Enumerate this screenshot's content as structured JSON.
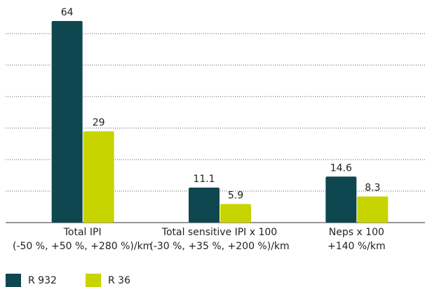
{
  "chart_data": {
    "type": "bar",
    "categories": [
      [
        "Total IPI",
        "(-50 %, +50 %, +280 %)/km"
      ],
      [
        "Total sensitive IPI x 100",
        "(-30 %, +35 %, +200 %)/km"
      ],
      [
        "Neps x 100",
        "+140 %/km"
      ]
    ],
    "series": [
      {
        "name": "R 932",
        "color": "#0e4750",
        "values": [
          64,
          11.1,
          14.6
        ]
      },
      {
        "name": "R 36",
        "color": "#c8d400",
        "values": [
          29,
          5.9,
          8.3
        ]
      }
    ],
    "ylim": [
      0,
      70
    ],
    "yticks": [
      0,
      10,
      20,
      30,
      40,
      50,
      60
    ],
    "grid": true,
    "legend": "bottom-left"
  }
}
